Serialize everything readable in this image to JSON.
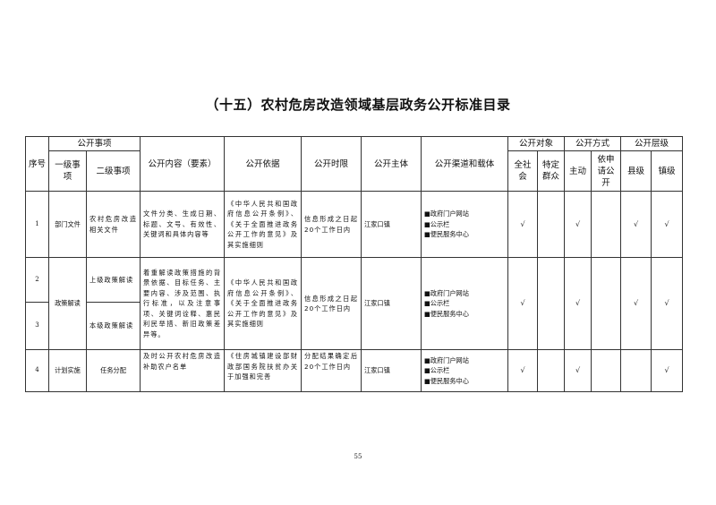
{
  "title": "（十五）农村危房改造领域基层政务公开标准目录",
  "headers": {
    "seq": "序号",
    "matters": "公开事项",
    "level1": "一级事项",
    "level2": "二级事项",
    "content": "公开内容（要素）",
    "basis": "公开依据",
    "time_limit": "公开时限",
    "subject": "公开主体",
    "channel": "公开渠道和载体",
    "target": "公开对象",
    "target_all": "全社会",
    "target_specific": "特定群众",
    "method": "公开方式",
    "method_active": "主动",
    "method_apply": "依申请公开",
    "level": "公开层级",
    "level_county": "县级",
    "level_town": "镇级"
  },
  "check": "√",
  "rows": [
    {
      "seq": "1",
      "level1": "部门文件",
      "level2": "农村危房改造相关文件",
      "content": "文件分类、生成日期、标题、文号、有效性、关键词和具体内容等",
      "basis": "《中华人民共和国政府信息公开条例》、《关于全面推进政务公开工作的意见》及其实施细则",
      "time_limit": "信息形成之日起20个工作日内",
      "subject": "江家口镇",
      "channels": [
        "■政府门户网站",
        "■公示栏",
        "■便民服务中心"
      ],
      "all": true,
      "specific": false,
      "active": true,
      "apply": false,
      "county": true,
      "town": true
    },
    {
      "seq": "2",
      "level1": "政策解读",
      "level2": "上级政策解读",
      "content": "着重解读政策措施的背景依据、目标任务、主要内容、涉及范围、执行标准，以及注意事项、关键词诠释、惠民利民举措、新旧政策差异等。",
      "basis": "《中华人民共和国政府信息公开条例》、《关于全面推进政务公开工作的意见》及其实施细则",
      "time_limit": "信息形成之日起20个工作日内",
      "subject": "江家口镇",
      "channels": [
        "■政府门户网站",
        "■公示栏",
        "■便民服务中心"
      ],
      "all": true,
      "specific": false,
      "active": true,
      "apply": false,
      "county": true,
      "town": true
    },
    {
      "seq": "3",
      "level2": "本级政策解读"
    },
    {
      "seq": "4",
      "level1": "计划实施",
      "level2": "任务分配",
      "content": "及时公开农村危房改造补助农户名单",
      "basis": "《住房城镇建设部财政部国务院扶贫办关于加强和完善",
      "time_limit": "分配结果确定后20个工作日内",
      "subject": "江家口镇",
      "channels": [
        "■政府门户网站",
        "■公示栏",
        "■便民服务中心"
      ],
      "all": true,
      "specific": false,
      "active": true,
      "apply": false,
      "county": false,
      "town": true
    }
  ],
  "page_number": "55"
}
